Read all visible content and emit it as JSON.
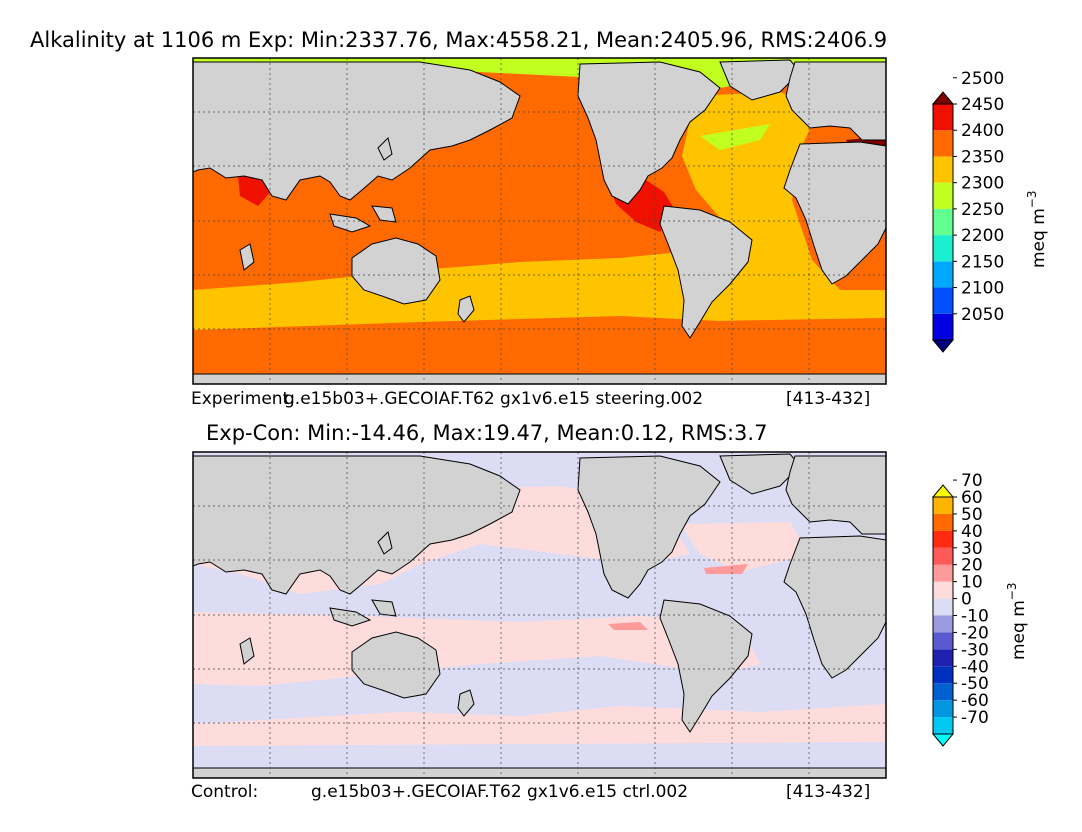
{
  "chart_data": [
    {
      "type": "heatmap",
      "title": "Alkalinity at 1106 m Exp: Min:2337.76, Max:4558.21, Mean:2405.96, RMS:2406.9",
      "footer": {
        "left": "Experiment:",
        "center": "g.e15b03+.GECOIAF.T62 gx1v6.e15 steering.002",
        "right": "[413-432]"
      },
      "colorbar": {
        "label": "meq m",
        "label_superscript": "−3",
        "levels": [
          "2050",
          "2100",
          "2150",
          "2200",
          "2250",
          "2300",
          "2350",
          "2400",
          "2450",
          "2500"
        ],
        "colors": [
          "#000080",
          "#0000e0",
          "#0050ff",
          "#00a8ff",
          "#1af0d0",
          "#60ff90",
          "#c0ff20",
          "#ffc400",
          "#ff6a00",
          "#f01000",
          "#800000"
        ],
        "extend": "both"
      },
      "stats": {
        "min": 2337.76,
        "max": 4558.21,
        "mean": 2405.96,
        "rms": 2406.9
      }
    },
    {
      "type": "heatmap",
      "title": "Exp-Con: Min:-14.46, Max:19.47, Mean:0.12, RMS:3.7",
      "footer": {
        "left": "Control:",
        "center": "g.e15b03+.GECOIAF.T62 gx1v6.e15 ctrl.002",
        "right": "[413-432]"
      },
      "colorbar": {
        "label": "meq m",
        "label_superscript": "−3",
        "levels": [
          "-70",
          "-60",
          "-50",
          "-40",
          "-30",
          "-20",
          "-10",
          "0",
          "10",
          "20",
          "30",
          "40",
          "50",
          "60",
          "70"
        ],
        "colors": [
          "#00ffff",
          "#00c8f0",
          "#0096e0",
          "#0060d0",
          "#0030c0",
          "#2020b0",
          "#5a5ad0",
          "#9a9ae0",
          "#dcdcf4",
          "#ffdcdc",
          "#ff9a9a",
          "#ff5a5a",
          "#ff2a10",
          "#ff6a00",
          "#ffb400",
          "#ffff00"
        ],
        "extend": "both"
      },
      "stats": {
        "min": -14.46,
        "max": 19.47,
        "mean": 0.12,
        "rms": 3.7
      }
    }
  ]
}
